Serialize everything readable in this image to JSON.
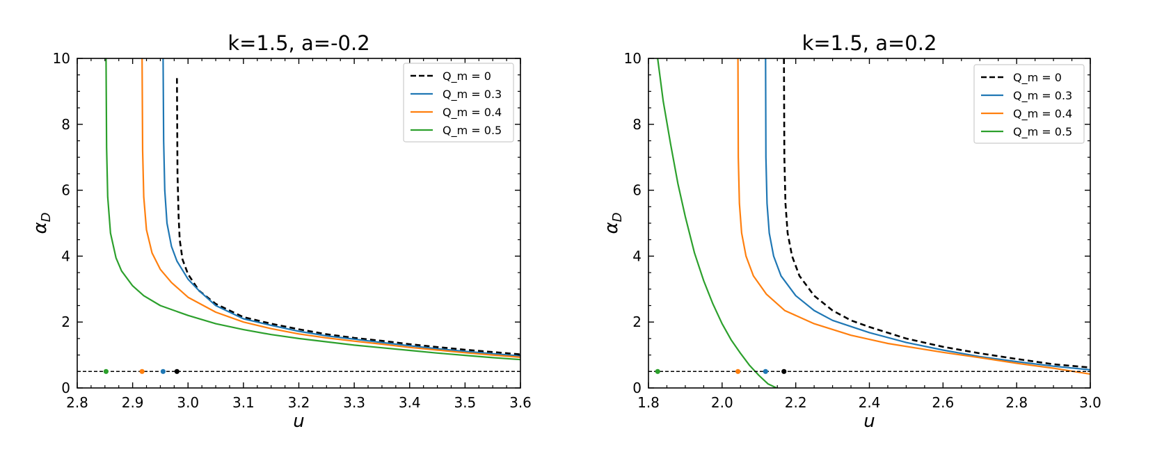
{
  "chart_data": [
    {
      "type": "line",
      "title": "k=1.5, a=-0.2",
      "xlabel": "u",
      "ylabel_base": "α",
      "ylabel_sub": "D",
      "xlim": [
        2.8,
        3.6
      ],
      "ylim": [
        0,
        10
      ],
      "xticks": [
        2.8,
        2.9,
        3.0,
        3.1,
        3.2,
        3.3,
        3.4,
        3.5,
        3.6
      ],
      "xtick_labels": [
        "2.8",
        "2.9",
        "3.0",
        "3.1",
        "3.2",
        "3.3",
        "3.4",
        "3.5",
        "3.6"
      ],
      "yticks": [
        0,
        2,
        4,
        6,
        8,
        10
      ],
      "ytick_labels": [
        "0",
        "2",
        "4",
        "6",
        "8",
        "10"
      ],
      "legend_position": "top-right",
      "reference_line": {
        "y": 0.5,
        "style": "dashed",
        "color": "#000000"
      },
      "series": [
        {
          "name": "Q_m = 0",
          "color": "#000000",
          "dashed": true,
          "x": [
            2.98,
            2.981,
            2.983,
            2.985,
            2.99,
            3.0,
            3.02,
            3.05,
            3.1,
            3.15,
            3.2,
            3.25,
            3.3,
            3.35,
            3.4,
            3.45,
            3.5,
            3.55,
            3.6
          ],
          "y": [
            9.4,
            6.5,
            5.2,
            4.5,
            3.9,
            3.45,
            2.95,
            2.55,
            2.15,
            1.95,
            1.78,
            1.63,
            1.52,
            1.43,
            1.33,
            1.24,
            1.16,
            1.09,
            1.02
          ],
          "marker": {
            "x": 2.98,
            "y": 0.5
          }
        },
        {
          "name": "Q_m = 0.3",
          "color": "#1f77b4",
          "dashed": false,
          "x": [
            2.955,
            2.956,
            2.958,
            2.962,
            2.97,
            2.98,
            3.0,
            3.02,
            3.05,
            3.1,
            3.15,
            3.2,
            3.25,
            3.3,
            3.35,
            3.4,
            3.45,
            3.5,
            3.55,
            3.6
          ],
          "y": [
            10.0,
            7.5,
            6.0,
            5.0,
            4.3,
            3.85,
            3.3,
            2.95,
            2.5,
            2.1,
            1.9,
            1.72,
            1.58,
            1.48,
            1.38,
            1.28,
            1.19,
            1.11,
            1.04,
            0.97
          ],
          "marker": {
            "x": 2.955,
            "y": 0.5
          }
        },
        {
          "name": "Q_m = 0.4",
          "color": "#ff7f0e",
          "dashed": false,
          "x": [
            2.917,
            2.918,
            2.92,
            2.925,
            2.935,
            2.95,
            2.97,
            3.0,
            3.05,
            3.1,
            3.15,
            3.2,
            3.25,
            3.3,
            3.35,
            3.4,
            3.45,
            3.5,
            3.55,
            3.6
          ],
          "y": [
            10.0,
            7.2,
            5.8,
            4.8,
            4.1,
            3.6,
            3.2,
            2.75,
            2.3,
            2.0,
            1.8,
            1.64,
            1.52,
            1.42,
            1.33,
            1.23,
            1.15,
            1.07,
            1.0,
            0.93
          ],
          "marker": {
            "x": 2.917,
            "y": 0.5
          }
        },
        {
          "name": "Q_m = 0.5",
          "color": "#2ca02c",
          "dashed": false,
          "x": [
            2.852,
            2.853,
            2.855,
            2.86,
            2.87,
            2.88,
            2.9,
            2.92,
            2.95,
            3.0,
            3.05,
            3.1,
            3.15,
            3.2,
            3.25,
            3.3,
            3.35,
            3.4,
            3.45,
            3.5,
            3.55,
            3.6
          ],
          "y": [
            10.0,
            7.3,
            5.8,
            4.7,
            3.95,
            3.55,
            3.1,
            2.8,
            2.5,
            2.2,
            1.95,
            1.77,
            1.62,
            1.5,
            1.4,
            1.3,
            1.22,
            1.14,
            1.06,
            0.99,
            0.92,
            0.86
          ],
          "marker": {
            "x": 2.852,
            "y": 0.5
          }
        }
      ]
    },
    {
      "type": "line",
      "title": "k=1.5, a=0.2",
      "xlabel": "u",
      "ylabel_base": "α",
      "ylabel_sub": "D",
      "xlim": [
        1.8,
        3.0
      ],
      "ylim": [
        0,
        10
      ],
      "xticks": [
        1.8,
        2.0,
        2.2,
        2.4,
        2.6,
        2.8,
        3.0
      ],
      "xtick_labels": [
        "1.8",
        "2.0",
        "2.2",
        "2.4",
        "2.6",
        "2.8",
        "3.0"
      ],
      "yticks": [
        0,
        2,
        4,
        6,
        8,
        10
      ],
      "ytick_labels": [
        "0",
        "2",
        "4",
        "6",
        "8",
        "10"
      ],
      "legend_position": "top-right",
      "reference_line": {
        "y": 0.5,
        "style": "dashed",
        "color": "#000000"
      },
      "series": [
        {
          "name": "Q_m = 0",
          "color": "#000000",
          "dashed": true,
          "x": [
            2.168,
            2.169,
            2.172,
            2.178,
            2.19,
            2.21,
            2.25,
            2.3,
            2.35,
            2.4,
            2.5,
            2.6,
            2.7,
            2.8,
            2.9,
            3.0
          ],
          "y": [
            10.0,
            7.0,
            5.6,
            4.7,
            4.0,
            3.4,
            2.8,
            2.35,
            2.05,
            1.85,
            1.5,
            1.25,
            1.05,
            0.88,
            0.72,
            0.62
          ],
          "marker": {
            "x": 2.168,
            "y": 0.5
          }
        },
        {
          "name": "Q_m = 0.3",
          "color": "#1f77b4",
          "dashed": false,
          "x": [
            2.118,
            2.119,
            2.122,
            2.128,
            2.14,
            2.16,
            2.2,
            2.25,
            2.3,
            2.4,
            2.5,
            2.6,
            2.7,
            2.8,
            2.9,
            3.0
          ],
          "y": [
            10.0,
            7.0,
            5.6,
            4.7,
            4.0,
            3.4,
            2.8,
            2.35,
            2.05,
            1.68,
            1.38,
            1.15,
            0.95,
            0.8,
            0.66,
            0.55
          ],
          "marker": {
            "x": 2.118,
            "y": 0.5
          }
        },
        {
          "name": "Q_m = 0.4",
          "color": "#ff7f0e",
          "dashed": false,
          "x": [
            2.043,
            2.044,
            2.047,
            2.053,
            2.065,
            2.085,
            2.12,
            2.17,
            2.25,
            2.35,
            2.45,
            2.6,
            2.7,
            2.8,
            2.9,
            3.0
          ],
          "y": [
            10.0,
            7.0,
            5.6,
            4.7,
            4.0,
            3.4,
            2.85,
            2.35,
            1.95,
            1.6,
            1.35,
            1.08,
            0.92,
            0.75,
            0.6,
            0.42
          ],
          "marker": {
            "x": 2.043,
            "y": 0.5
          }
        },
        {
          "name": "Q_m = 0.5",
          "color": "#2ca02c",
          "dashed": false,
          "x": [
            1.825,
            1.84,
            1.86,
            1.88,
            1.9,
            1.925,
            1.95,
            1.975,
            2.0,
            2.025,
            2.05,
            2.075,
            2.1,
            2.125,
            2.148
          ],
          "y": [
            10.0,
            8.7,
            7.4,
            6.2,
            5.2,
            4.1,
            3.25,
            2.55,
            1.95,
            1.45,
            1.05,
            0.68,
            0.38,
            0.12,
            0.0
          ],
          "marker": {
            "x": 1.825,
            "y": 0.5
          }
        }
      ]
    }
  ]
}
